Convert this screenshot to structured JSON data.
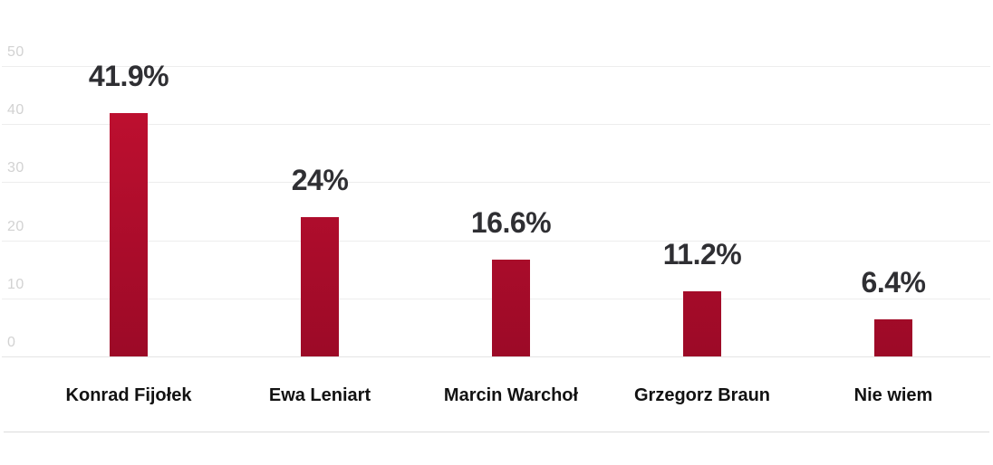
{
  "chart_data": {
    "type": "bar",
    "title": "",
    "xlabel": "",
    "ylabel": "",
    "categories": [
      "Konrad Fijołek",
      "Ewa Leniart",
      "Marcin Warchoł",
      "Grzegorz Braun",
      "Nie wiem"
    ],
    "values": [
      41.9,
      24,
      16.6,
      11.2,
      6.4
    ],
    "data_labels": [
      "41.9%",
      "24%",
      "16.6%",
      "11.2%",
      "6.4%"
    ],
    "ylim": [
      0,
      50
    ],
    "yticks": [
      0,
      10,
      20,
      30,
      40,
      50
    ],
    "grid": true,
    "legend": false
  },
  "colors": {
    "bar_gradient_top": "#c31031",
    "bar_gradient_bottom": "#9c0a27",
    "gridline": "#ededed",
    "axis_line": "#e4e4e4",
    "ytick_label": "#d2d2d2",
    "data_label": "#2f2f33",
    "category_label": "#121212",
    "divider": "#dcdcdc",
    "background": "#ffffff"
  }
}
